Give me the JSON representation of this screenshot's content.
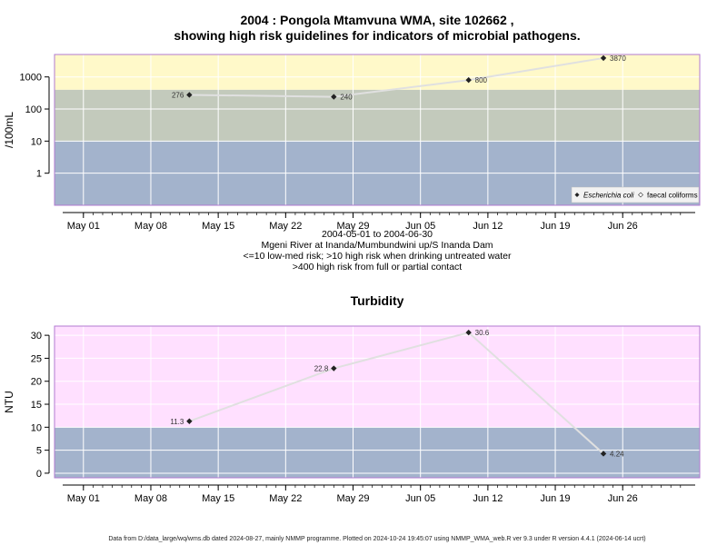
{
  "page": {
    "title_line1": "2004 : Pongola Mtamvuna WMA, site 102662 ,",
    "title_line2": "showing high risk guidelines for indicators of microbial pathogens.",
    "caption": [
      "2004-05-01 to 2004-06-30",
      "Mgeni River at Inanda/Mumbundwini up/S Inanda Dam",
      "<=10 low-med risk; >10 high risk when drinking untreated water",
      ">400 high risk from full or partial contact"
    ],
    "turbidity_title": "Turbidity",
    "footer": "Data from D:/data_large/wq/wms.db dated 2024-08-27, mainly NMMP programme. Plotted on 2024-10-24 19:45:07 using NMMP_WMA_web.R ver 9.3 under R version 4.4.1 (2024-06-14 ucrt)"
  },
  "colors": {
    "low_band": "#a3b3cc",
    "mid_band": "#c3cabc",
    "high_band": "#fff9c9",
    "turbidity_high_band": "#ffe0ff",
    "line": "#e0e0e0",
    "point": "#222222",
    "frame": "#b07ad0"
  },
  "chart_data": [
    {
      "type": "line",
      "title": "2004 : Pongola Mtamvuna WMA, site 102662 , showing high risk guidelines for indicators of microbial pathogens.",
      "ylabel": "/100mL",
      "yscale": "log",
      "ylim": [
        0.1,
        5000
      ],
      "yticks": [
        1,
        10,
        100,
        1000
      ],
      "ytick_labels": [
        "1",
        "10",
        "100",
        "1000"
      ],
      "xlim": [
        "2004-04-28",
        "2004-07-04"
      ],
      "xticks": [
        "2004-05-01",
        "2004-05-08",
        "2004-05-15",
        "2004-05-22",
        "2004-05-29",
        "2004-06-05",
        "2004-06-12",
        "2004-06-19",
        "2004-06-26"
      ],
      "xtick_labels": [
        "May 01",
        "May 08",
        "May 15",
        "May 22",
        "May 29",
        "Jun 05",
        "Jun 12",
        "Jun 19",
        "Jun 26"
      ],
      "bands": [
        {
          "from": 0.1,
          "to": 10,
          "color": "#a3b3cc"
        },
        {
          "from": 10,
          "to": 400,
          "color": "#c3cabc"
        },
        {
          "from": 400,
          "to": 5000,
          "color": "#fff9c9"
        }
      ],
      "legend": {
        "position": "bottom-right",
        "entries": [
          "Escherichia coli",
          "faecal coliforms"
        ]
      },
      "series": [
        {
          "name": "Escherichia coli",
          "x": [
            "2004-05-12",
            "2004-05-27",
            "2004-06-10",
            "2004-06-24"
          ],
          "values": [
            276,
            240,
            800,
            3870
          ],
          "labels": [
            "276",
            "240",
            "800",
            "3870"
          ]
        }
      ]
    },
    {
      "type": "line",
      "title": "Turbidity",
      "ylabel": "NTU",
      "ylim": [
        -1,
        32
      ],
      "yticks": [
        0,
        5,
        10,
        15,
        20,
        25,
        30
      ],
      "ytick_labels": [
        "0",
        "5",
        "10",
        "15",
        "20",
        "25",
        "30"
      ],
      "xlim": [
        "2004-04-28",
        "2004-07-04"
      ],
      "xticks": [
        "2004-05-01",
        "2004-05-08",
        "2004-05-15",
        "2004-05-22",
        "2004-05-29",
        "2004-06-05",
        "2004-06-12",
        "2004-06-19",
        "2004-06-26"
      ],
      "xtick_labels": [
        "May 01",
        "May 08",
        "May 15",
        "May 22",
        "May 29",
        "Jun 05",
        "Jun 12",
        "Jun 19",
        "Jun 26"
      ],
      "bands": [
        {
          "from": -1,
          "to": 10,
          "color": "#a3b3cc"
        },
        {
          "from": 10,
          "to": 32,
          "color": "#ffe0ff"
        }
      ],
      "series": [
        {
          "x": [
            "2004-05-12",
            "2004-05-27",
            "2004-06-10",
            "2004-06-24"
          ],
          "values": [
            11.3,
            22.8,
            30.6,
            4.24
          ],
          "labels": [
            "11.3",
            "22.8",
            "30.6",
            "4.24"
          ]
        }
      ]
    }
  ]
}
